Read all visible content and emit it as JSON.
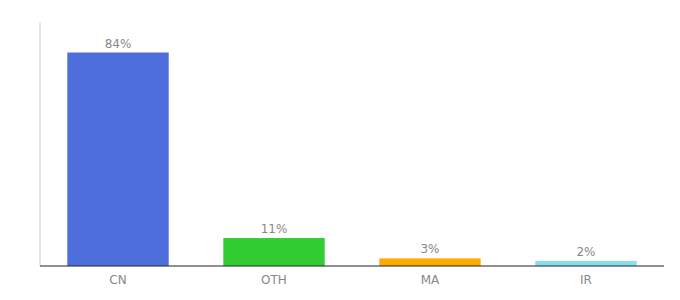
{
  "chart_data": {
    "type": "bar",
    "categories": [
      "CN",
      "OTH",
      "MA",
      "IR"
    ],
    "values": [
      84,
      11,
      3,
      2
    ],
    "value_labels": [
      "84%",
      "11%",
      "3%",
      "2%"
    ],
    "colors": [
      "#4d6edb",
      "#33cc33",
      "#ffaa00",
      "#88ddee"
    ],
    "ylim": [
      0,
      96
    ],
    "data_labels": true,
    "tick_labels": "x",
    "grid": false
  }
}
